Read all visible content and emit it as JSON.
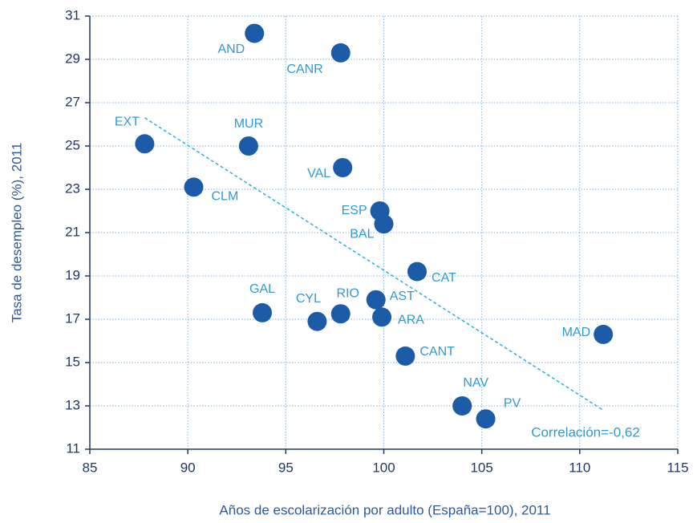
{
  "chart_data": {
    "type": "scatter",
    "x_label": "Años de escolarización por adulto (España=100), 2011",
    "y_label": "Tasa de desempleo (%), 2011",
    "labels": [
      "AND",
      "CANR",
      "EXT",
      "MUR",
      "VAL",
      "CLM",
      "ESP",
      "BAL",
      "CAT",
      "GAL",
      "CYL",
      "RIO",
      "AST",
      "ARA",
      "CANT",
      "MAD",
      "NAV",
      "PV"
    ],
    "x": [
      93.4,
      97.8,
      87.8,
      93.1,
      97.9,
      90.3,
      99.8,
      100.0,
      101.7,
      93.8,
      96.6,
      97.8,
      99.6,
      99.9,
      101.1,
      111.2,
      104.0,
      105.2
    ],
    "values": [
      30.2,
      29.3,
      25.1,
      25.0,
      24.0,
      23.1,
      22.0,
      21.4,
      19.2,
      17.3,
      16.9,
      17.25,
      17.9,
      17.1,
      15.3,
      16.3,
      13.0,
      12.4
    ],
    "color": "#1b5ba8",
    "trendline": {
      "x": [
        87.8,
        111.2
      ],
      "y": [
        26.3,
        12.8
      ],
      "color": "#2bb0de"
    },
    "annotation": "Correlación=-0,62",
    "xlim": [
      85,
      115
    ],
    "xticks": [
      85,
      90,
      95,
      100,
      105,
      110,
      115
    ],
    "ylim": [
      11,
      31
    ],
    "yticks": [
      11,
      13,
      15,
      17,
      19,
      21,
      23,
      25,
      27,
      29,
      31
    ],
    "grid": true
  }
}
